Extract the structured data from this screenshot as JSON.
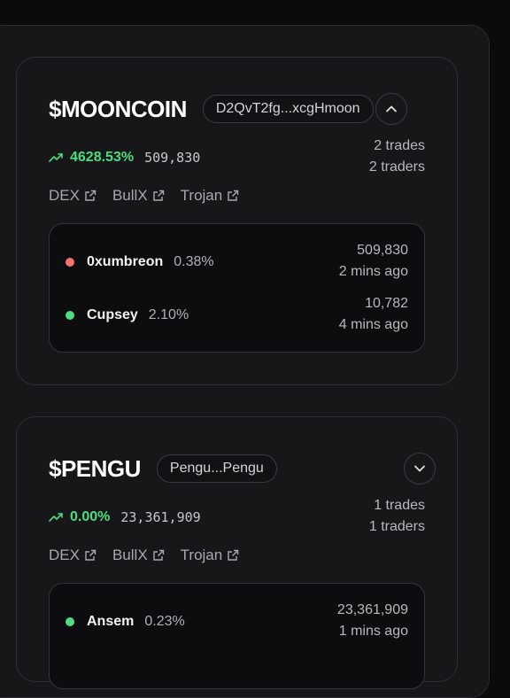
{
  "tokens": [
    {
      "ticker": "$MOONCOIN",
      "address": "D2QvT2fg...xcgHmoon",
      "expanded": true,
      "change_pct": "4628.53%",
      "volume": "509,830",
      "trades": "2 trades",
      "traders": "2 traders",
      "links": [
        "DEX",
        "BullX",
        "Trojan"
      ],
      "rows": [
        {
          "trader": "0xumbreon",
          "share": "0.38%",
          "amount": "509,830",
          "time": "2 mins ago",
          "side": "sell",
          "color": "#f87171"
        },
        {
          "trader": "Cupsey",
          "share": "2.10%",
          "amount": "10,782",
          "time": "4 mins ago",
          "side": "buy",
          "color": "#4ade80"
        }
      ]
    },
    {
      "ticker": "$PENGU",
      "address": "Pengu...Pengu",
      "expanded": false,
      "change_pct": "0.00%",
      "volume": "23,361,909",
      "trades": "1 trades",
      "traders": "1 traders",
      "links": [
        "DEX",
        "BullX",
        "Trojan"
      ],
      "rows": [
        {
          "trader": "Ansem",
          "share": "0.23%",
          "amount": "23,361,909",
          "time": "1 mins ago",
          "side": "buy",
          "color": "#4ade80"
        }
      ]
    }
  ],
  "colors": {
    "positive": "#4ade80",
    "negative": "#f87171",
    "background": "#17171a"
  },
  "icons": {
    "trend": "trending-up-icon",
    "external": "external-link-icon",
    "collapse": "chevron-up-icon",
    "expand": "chevron-down-icon"
  }
}
